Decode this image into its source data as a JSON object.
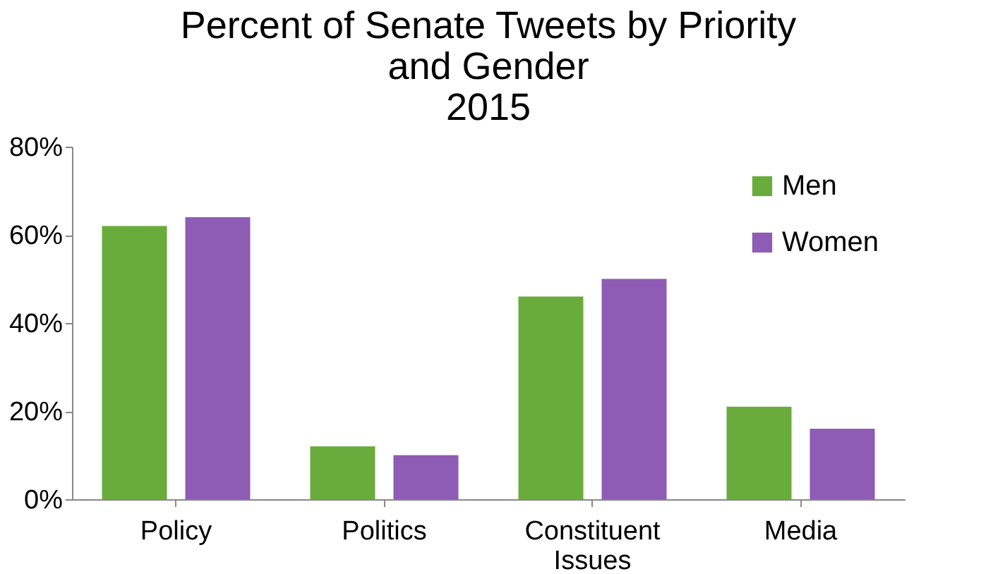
{
  "chart_data": {
    "type": "bar",
    "title": [
      "Percent of Senate Tweets by Priority",
      "and Gender",
      "2015"
    ],
    "categories": [
      "Policy",
      "Politics",
      "Constituent Issues",
      "Media"
    ],
    "series": [
      {
        "name": "Men",
        "color": "#6aac3c",
        "values": [
          62,
          12,
          46,
          21
        ]
      },
      {
        "name": "Women",
        "color": "#8e5bb5",
        "values": [
          64,
          10,
          50,
          16
        ]
      }
    ],
    "ylim": [
      0,
      80
    ],
    "yticks": [
      {
        "value": 0,
        "label": "0%"
      },
      {
        "value": 20,
        "label": "20%"
      },
      {
        "value": 40,
        "label": "40%"
      },
      {
        "value": 60,
        "label": "60%"
      },
      {
        "value": 80,
        "label": "80%"
      }
    ],
    "grid": false,
    "legend": "top right"
  }
}
